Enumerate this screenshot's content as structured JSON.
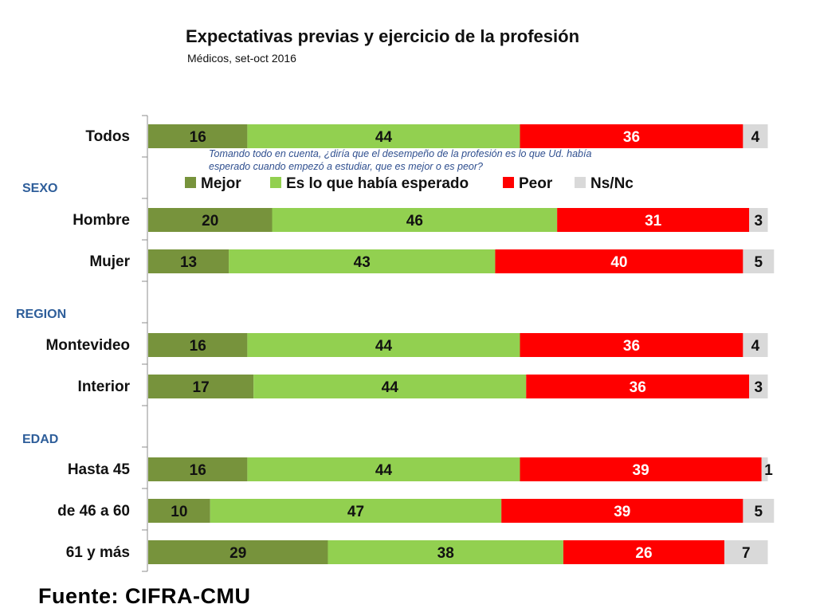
{
  "chart_data": {
    "type": "bar",
    "orientation": "horizontal",
    "stacked": true,
    "title": "Expectativas previas y ejercicio de la profesión",
    "subtitle": "Médicos, set-oct 2016",
    "question": "Tomando todo en cuenta, ¿diría que el desempeño de la profesión es lo que Ud. había esperado cuando empezó a estudiar, que es mejor o es peor?",
    "question_lines": [
      "Tomando todo en cuenta, ¿diría que el desempeño de la profesión es lo que Ud. había",
      "esperado cuando empezó a estudiar, que es mejor o es peor?"
    ],
    "source": "Fuente: CIFRA-CMU",
    "legend_position": "top",
    "groups": [
      "SEXO",
      "REGION",
      "EDAD"
    ],
    "categories": [
      "Todos",
      "Hombre",
      "Mujer",
      "Montevideo",
      "Interior",
      "Hasta 45",
      "de 46 a 60",
      "61 y más"
    ],
    "category_groups": [
      "",
      "SEXO",
      "SEXO",
      "REGION",
      "REGION",
      "EDAD",
      "EDAD",
      "EDAD"
    ],
    "series": [
      {
        "name": "Mejor",
        "color": "#77933C",
        "values": [
          16,
          20,
          13,
          16,
          17,
          16,
          10,
          29
        ]
      },
      {
        "name": "Es lo que había esperado",
        "color": "#92D050",
        "values": [
          44,
          46,
          43,
          44,
          44,
          44,
          47,
          38
        ]
      },
      {
        "name": "Peor",
        "color": "#FF0000",
        "values": [
          36,
          31,
          40,
          36,
          36,
          39,
          39,
          26
        ]
      },
      {
        "name": "Ns/Nc",
        "color": "#D9D9D9",
        "values": [
          4,
          3,
          5,
          4,
          3,
          1,
          5,
          7
        ]
      }
    ],
    "label_colors": [
      "#111111",
      "#111111",
      "#ffffff",
      "#111111"
    ]
  }
}
